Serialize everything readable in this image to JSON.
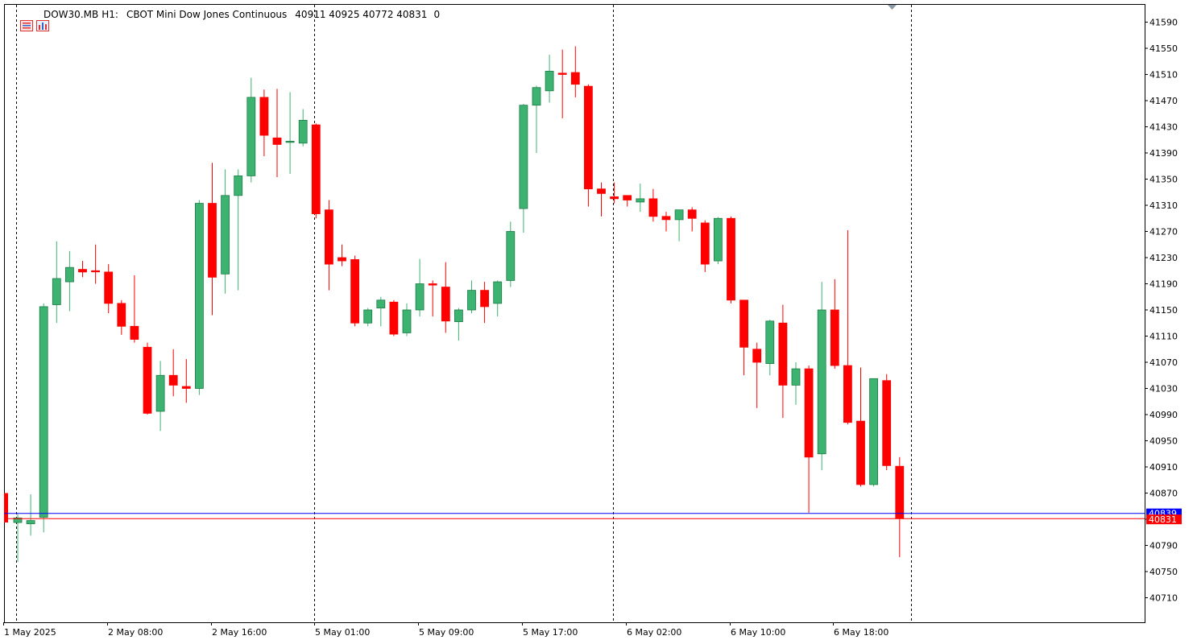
{
  "header": {
    "symbol": "DOW30.MB",
    "timeframe": "H1:",
    "description": "CBOT Mini Dow Jones Continuous",
    "ohlc": "40911 40925 40772 40831",
    "volume": "0",
    "icons": [
      "menu-icon",
      "chart-window-icon"
    ]
  },
  "colors": {
    "bull": "#3cb371",
    "bear": "#ff0000",
    "grid": "#000000",
    "bid_line": "#ff0000",
    "ask_line": "#0000ff",
    "bid_tag": "#ff0000",
    "ask_tag": "#0000ff"
  },
  "price_tags": {
    "ask": "40839",
    "bid": "40831"
  },
  "chart_data": {
    "type": "candlestick",
    "title": "",
    "ylim": [
      40665,
      41620
    ],
    "y_ticks": [
      "41590",
      "41550",
      "41510",
      "41470",
      "41430",
      "41390",
      "41350",
      "41310",
      "41270",
      "41230",
      "41190",
      "41150",
      "41110",
      "41070",
      "41030",
      "40990",
      "40950",
      "40910",
      "40870",
      "40830",
      "40790",
      "40750",
      "40710"
    ],
    "x_labels": [
      "1 May 2025",
      "2 May 08:00",
      "2 May 16:00",
      "5 May 01:00",
      "5 May 09:00",
      "5 May 17:00",
      "6 May 02:00",
      "6 May 10:00",
      "6 May 18:00"
    ],
    "x_label_bars": [
      0,
      8,
      16,
      24,
      32,
      40,
      48,
      56,
      64
    ],
    "period_separators_at_bars": [
      0,
      23,
      46,
      69
    ],
    "grid": false,
    "ask_price": 40839,
    "bid_price": 40831,
    "candles": [
      {
        "o": 40825,
        "h": 40838,
        "l": 40765,
        "c": 40832
      },
      {
        "o": 40823,
        "h": 40868,
        "l": 40805,
        "c": 40828
      },
      {
        "o": 40833,
        "h": 41160,
        "l": 40810,
        "c": 41155
      },
      {
        "o": 41158,
        "h": 41255,
        "l": 41130,
        "c": 41198
      },
      {
        "o": 41193,
        "h": 41240,
        "l": 41148,
        "c": 41215
      },
      {
        "o": 41212,
        "h": 41225,
        "l": 41200,
        "c": 41208
      },
      {
        "o": 41210,
        "h": 41250,
        "l": 41190,
        "c": 41209
      },
      {
        "o": 41208,
        "h": 41220,
        "l": 41145,
        "c": 41160
      },
      {
        "o": 41160,
        "h": 41165,
        "l": 41112,
        "c": 41125
      },
      {
        "o": 41125,
        "h": 41203,
        "l": 41100,
        "c": 41105
      },
      {
        "o": 41093,
        "h": 41100,
        "l": 40990,
        "c": 40992
      },
      {
        "o": 40995,
        "h": 41072,
        "l": 40965,
        "c": 41050
      },
      {
        "o": 41050,
        "h": 41090,
        "l": 41018,
        "c": 41035
      },
      {
        "o": 41033,
        "h": 41075,
        "l": 41008,
        "c": 41030
      },
      {
        "o": 41030,
        "h": 41318,
        "l": 41020,
        "c": 41313
      },
      {
        "o": 41313,
        "h": 41375,
        "l": 41142,
        "c": 41200
      },
      {
        "o": 41205,
        "h": 41365,
        "l": 41175,
        "c": 41325
      },
      {
        "o": 41325,
        "h": 41365,
        "l": 41180,
        "c": 41355
      },
      {
        "o": 41355,
        "h": 41505,
        "l": 41345,
        "c": 41475
      },
      {
        "o": 41475,
        "h": 41487,
        "l": 41385,
        "c": 41417
      },
      {
        "o": 41413,
        "h": 41488,
        "l": 41353,
        "c": 41403
      },
      {
        "o": 41408,
        "h": 41483,
        "l": 41358,
        "c": 41408
      },
      {
        "o": 41405,
        "h": 41457,
        "l": 41400,
        "c": 41440
      },
      {
        "o": 41433,
        "h": 41435,
        "l": 41290,
        "c": 41297
      },
      {
        "o": 41303,
        "h": 41318,
        "l": 41180,
        "c": 41220
      },
      {
        "o": 41230,
        "h": 41250,
        "l": 41217,
        "c": 41225
      },
      {
        "o": 41227,
        "h": 41233,
        "l": 41125,
        "c": 41130
      },
      {
        "o": 41130,
        "h": 41153,
        "l": 41125,
        "c": 41150
      },
      {
        "o": 41153,
        "h": 41170,
        "l": 41125,
        "c": 41165
      },
      {
        "o": 41162,
        "h": 41165,
        "l": 41110,
        "c": 41113
      },
      {
        "o": 41115,
        "h": 41160,
        "l": 41110,
        "c": 41150
      },
      {
        "o": 41150,
        "h": 41228,
        "l": 41140,
        "c": 41190
      },
      {
        "o": 41190,
        "h": 41195,
        "l": 41140,
        "c": 41188
      },
      {
        "o": 41185,
        "h": 41223,
        "l": 41115,
        "c": 41133
      },
      {
        "o": 41132,
        "h": 41153,
        "l": 41103,
        "c": 41150
      },
      {
        "o": 41150,
        "h": 41195,
        "l": 41145,
        "c": 41180
      },
      {
        "o": 41180,
        "h": 41193,
        "l": 41130,
        "c": 41155
      },
      {
        "o": 41160,
        "h": 41195,
        "l": 41140,
        "c": 41193
      },
      {
        "o": 41195,
        "h": 41285,
        "l": 41185,
        "c": 41270
      },
      {
        "o": 41305,
        "h": 41465,
        "l": 41268,
        "c": 41463
      },
      {
        "o": 41463,
        "h": 41493,
        "l": 41390,
        "c": 41490
      },
      {
        "o": 41485,
        "h": 41540,
        "l": 41467,
        "c": 41515
      },
      {
        "o": 41512,
        "h": 41548,
        "l": 41443,
        "c": 41510
      },
      {
        "o": 41513,
        "h": 41553,
        "l": 41475,
        "c": 41495
      },
      {
        "o": 41492,
        "h": 41495,
        "l": 41308,
        "c": 41335
      },
      {
        "o": 41335,
        "h": 41345,
        "l": 41293,
        "c": 41328
      },
      {
        "o": 41323,
        "h": 41345,
        "l": 41313,
        "c": 41320
      },
      {
        "o": 41325,
        "h": 41320,
        "l": 41308,
        "c": 41318
      },
      {
        "o": 41315,
        "h": 41343,
        "l": 41300,
        "c": 41320
      },
      {
        "o": 41320,
        "h": 41335,
        "l": 41285,
        "c": 41293
      },
      {
        "o": 41293,
        "h": 41300,
        "l": 41270,
        "c": 41288
      },
      {
        "o": 41288,
        "h": 41302,
        "l": 41255,
        "c": 41303
      },
      {
        "o": 41303,
        "h": 41307,
        "l": 41270,
        "c": 41290
      },
      {
        "o": 41283,
        "h": 41287,
        "l": 41208,
        "c": 41220
      },
      {
        "o": 41225,
        "h": 41292,
        "l": 41220,
        "c": 41290
      },
      {
        "o": 41290,
        "h": 41293,
        "l": 41160,
        "c": 41165
      },
      {
        "o": 41165,
        "h": 41165,
        "l": 41050,
        "c": 41093
      },
      {
        "o": 41090,
        "h": 41100,
        "l": 41000,
        "c": 41070
      },
      {
        "o": 41068,
        "h": 41135,
        "l": 41050,
        "c": 41133
      },
      {
        "o": 41130,
        "h": 41158,
        "l": 40985,
        "c": 41035
      },
      {
        "o": 41035,
        "h": 41070,
        "l": 41005,
        "c": 41060
      },
      {
        "o": 41060,
        "h": 41065,
        "l": 40840,
        "c": 40925
      },
      {
        "o": 40930,
        "h": 41193,
        "l": 40905,
        "c": 41150
      },
      {
        "o": 41150,
        "h": 41197,
        "l": 41060,
        "c": 41065
      },
      {
        "o": 41065,
        "h": 41272,
        "l": 40975,
        "c": 40978
      },
      {
        "o": 40980,
        "h": 41062,
        "l": 40880,
        "c": 40883
      },
      {
        "o": 40883,
        "h": 41045,
        "l": 40880,
        "c": 41045
      },
      {
        "o": 41042,
        "h": 41052,
        "l": 40905,
        "c": 40912
      },
      {
        "o": 40911,
        "h": 40925,
        "l": 40772,
        "c": 40831
      }
    ]
  }
}
